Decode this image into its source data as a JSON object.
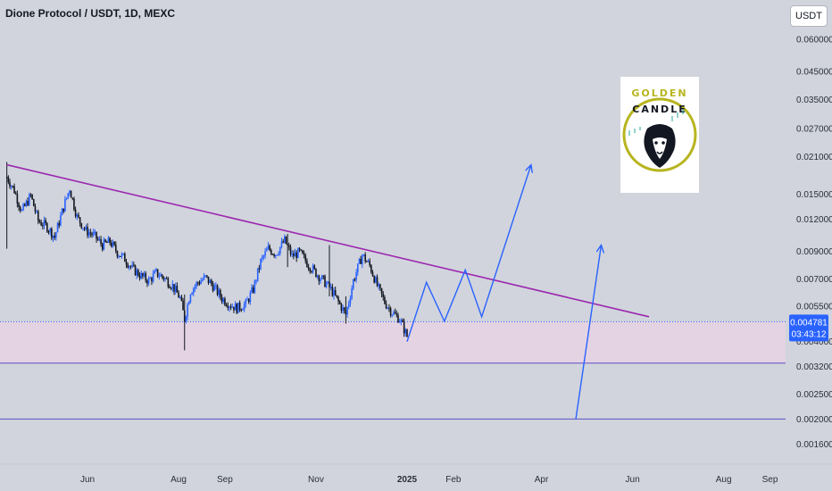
{
  "header": {
    "title": "Dione Protocol / USDT, 1D, MEXC",
    "unit_button": "USDT"
  },
  "logo": {
    "line1": "GOLDEN",
    "line2": "CANDLE",
    "icon": "lion-head-icon"
  },
  "colors": {
    "background": "#d1d4dc",
    "up_candle": "#2962ff",
    "down_candle": "#131722",
    "trendline": "#9c27b0",
    "projection": "#2962ff",
    "support_fill": "#e6d3e3",
    "current_price_badge": "#2962ff",
    "logo_gold": "#b7b51f"
  },
  "price_badge": {
    "price": "0.004781",
    "countdown": "03:43:12"
  },
  "chart_data": {
    "type": "candlestick",
    "title": "Dione Protocol / USDT, 1D, MEXC",
    "y_scale": "log",
    "ylim": [
      0.0014,
      0.065
    ],
    "y_ticks": [
      "0.060000",
      "0.045000",
      "0.035000",
      "0.027000",
      "0.021000",
      "0.015000",
      "0.012000",
      "0.009000",
      "0.007000",
      "0.005500",
      "0.004000",
      "0.003200",
      "0.002500",
      "0.002000",
      "0.001600"
    ],
    "x_ticks": [
      {
        "label": "Jun",
        "date": "2024-06-01"
      },
      {
        "label": "Aug",
        "date": "2024-08-01"
      },
      {
        "label": "Sep",
        "date": "2024-09-01"
      },
      {
        "label": "Nov",
        "date": "2024-11-01"
      },
      {
        "label": "2025",
        "date": "2025-01-01"
      },
      {
        "label": "Feb",
        "date": "2025-02-01"
      },
      {
        "label": "Apr",
        "date": "2025-04-01"
      },
      {
        "label": "Jun",
        "date": "2025-06-01"
      },
      {
        "label": "Aug",
        "date": "2025-08-01"
      },
      {
        "label": "Sep",
        "date": "2025-09-01"
      }
    ],
    "price_path": [
      [
        "2024-04-08",
        0.0175
      ],
      [
        "2024-04-13",
        0.0155
      ],
      [
        "2024-04-18",
        0.0128
      ],
      [
        "2024-04-24",
        0.0148
      ],
      [
        "2024-04-29",
        0.0118
      ],
      [
        "2024-05-05",
        0.0112
      ],
      [
        "2024-05-10",
        0.0102
      ],
      [
        "2024-05-15",
        0.0128
      ],
      [
        "2024-05-20",
        0.0158
      ],
      [
        "2024-05-25",
        0.0122
      ],
      [
        "2024-05-31",
        0.0108
      ],
      [
        "2024-06-05",
        0.0104
      ],
      [
        "2024-06-11",
        0.0095
      ],
      [
        "2024-06-16",
        0.0098
      ],
      [
        "2024-06-21",
        0.0089
      ],
      [
        "2024-06-26",
        0.0084
      ],
      [
        "2024-07-01",
        0.0077
      ],
      [
        "2024-07-07",
        0.0072
      ],
      [
        "2024-07-12",
        0.0069
      ],
      [
        "2024-07-17",
        0.0074
      ],
      [
        "2024-07-22",
        0.0071
      ],
      [
        "2024-07-28",
        0.0066
      ],
      [
        "2024-08-02",
        0.0059
      ],
      [
        "2024-08-05",
        0.0049
      ],
      [
        "2024-08-09",
        0.0063
      ],
      [
        "2024-08-14",
        0.0068
      ],
      [
        "2024-08-19",
        0.0071
      ],
      [
        "2024-08-24",
        0.0066
      ],
      [
        "2024-08-30",
        0.0059
      ],
      [
        "2024-09-04",
        0.0056
      ],
      [
        "2024-09-09",
        0.0054
      ],
      [
        "2024-09-15",
        0.0056
      ],
      [
        "2024-09-20",
        0.0064
      ],
      [
        "2024-09-25",
        0.0082
      ],
      [
        "2024-09-30",
        0.0092
      ],
      [
        "2024-10-05",
        0.0088
      ],
      [
        "2024-10-11",
        0.0099
      ],
      [
        "2024-10-16",
        0.0086
      ],
      [
        "2024-10-21",
        0.0089
      ],
      [
        "2024-10-26",
        0.0081
      ],
      [
        "2024-11-01",
        0.0074
      ],
      [
        "2024-11-06",
        0.0069
      ],
      [
        "2024-11-11",
        0.0064
      ],
      [
        "2024-11-16",
        0.0057
      ],
      [
        "2024-11-21",
        0.0051
      ],
      [
        "2024-11-26",
        0.0069
      ],
      [
        "2024-12-02",
        0.0087
      ],
      [
        "2024-12-07",
        0.0079
      ],
      [
        "2024-12-12",
        0.0066
      ],
      [
        "2024-12-17",
        0.0057
      ],
      [
        "2024-12-22",
        0.0052
      ],
      [
        "2024-12-27",
        0.0049
      ],
      [
        "2025-01-01",
        0.0042
      ]
    ],
    "notable_wicks": [
      {
        "date": "2024-04-08",
        "high": 0.02,
        "low": 0.0092
      },
      {
        "date": "2024-08-05",
        "high": 0.0061,
        "low": 0.0037
      },
      {
        "date": "2024-10-13",
        "high": 0.0105,
        "low": 0.0078
      },
      {
        "date": "2024-11-10",
        "high": 0.0095,
        "low": 0.006
      },
      {
        "date": "2024-11-21",
        "high": 0.006,
        "low": 0.0047
      }
    ],
    "trendline": {
      "start": [
        "2024-04-08",
        0.0195
      ],
      "end": [
        "2025-06-12",
        0.005
      ]
    },
    "horizontal_lines": [
      {
        "price": 0.00478,
        "style": "dotted"
      },
      {
        "price": 0.0033,
        "style": "solid"
      },
      {
        "price": 0.002,
        "style": "solid"
      }
    ],
    "support_zone": [
      0.0033,
      0.00478
    ],
    "projection_zigzag": [
      [
        "2025-01-01",
        0.004
      ],
      [
        "2025-01-14",
        0.0068
      ],
      [
        "2025-01-26",
        0.0048
      ],
      [
        "2025-02-09",
        0.0076
      ],
      [
        "2025-02-20",
        0.005
      ],
      [
        "2025-03-25",
        0.0195
      ]
    ],
    "projection_line": [
      [
        "2025-04-24",
        0.002
      ],
      [
        "2025-05-11",
        0.0095
      ]
    ],
    "current_price": 0.004781
  }
}
